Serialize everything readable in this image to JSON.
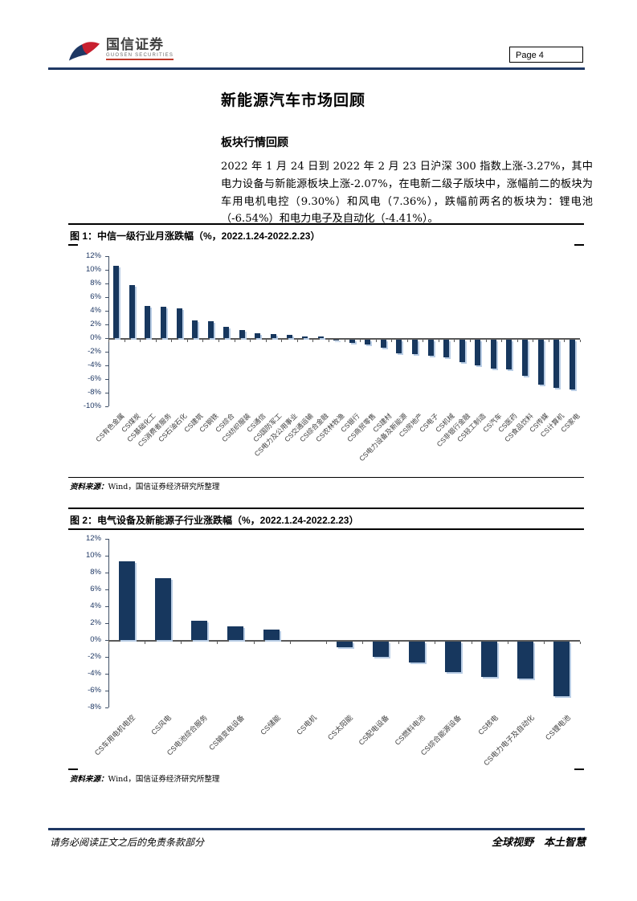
{
  "header": {
    "logo": {
      "name_cn": "国信证券",
      "name_en": "GUOSEN SECURITIES"
    },
    "page_label": "Page 4"
  },
  "article": {
    "title": "新能源汽车市场回顾",
    "section_heading": "板块行情回顾",
    "paragraph": "2022 年 1 月 24 日到 2022 年 2 月 23 日沪深 300 指数上涨-3.27%，其中电力设备与新能源板块上涨-2.07%，在电新二级子版块中，涨幅前二的板块为车用电机电控（9.30%）和风电（7.36%），跌幅前两名的板块为：锂电池（-6.54%）和电力电子及自动化（-4.41%）。"
  },
  "figures": [
    {
      "caption": "图 1：中信一级行业月涨跌幅（%，2022.1.24-2022.2.23）",
      "source_label": "资料来源：",
      "source_text": "Wind，国信证券经济研究所整理"
    },
    {
      "caption": "图 2：电气设备及新能源子行业涨跌幅（%，2022.1.24-2022.2.23）",
      "source_label": "资料来源：",
      "source_text": "Wind，国信证券经济研究所整理"
    }
  ],
  "footer": {
    "disclaimer": "请务必阅读正文之后的免责条款部分",
    "slogan": "全球视野　本土智慧"
  },
  "colors": {
    "bar": "#17375E",
    "bar_shadow": "#B9CDE5",
    "rule_navy": "#1F3864",
    "axis_text": "#1F3864",
    "axis_line": "#595959",
    "logo_red": "#C8202F",
    "logo_blue": "#1F3864"
  },
  "chart_data": [
    {
      "type": "bar",
      "title": "中信一级行业月涨跌幅（%，2022.1.24-2022.2.23）",
      "xlabel": "",
      "ylabel": "",
      "ylim": [
        -10,
        12
      ],
      "ytick_step": 2,
      "grid": false,
      "legend": null,
      "categories": [
        "CS有色金属",
        "CS煤炭",
        "CS基础化工",
        "CS消费者服务",
        "CS石油石化",
        "CS建筑",
        "CS钢铁",
        "CS综合",
        "CS纺织服装",
        "CS通信",
        "CS国防军工",
        "CS电力及公用事业",
        "CS交通运输",
        "CS综合金融",
        "CS农林牧渔",
        "CS银行",
        "CS商贸零售",
        "CS建材",
        "CS电力设备及新能源",
        "CS房地产",
        "CS电子",
        "CS机械",
        "CS非银行金融",
        "CS轻工制造",
        "CS汽车",
        "CS医药",
        "CS食品饮料",
        "CS传媒",
        "CS计算机",
        "CS家电"
      ],
      "values": [
        10.6,
        7.8,
        4.7,
        4.6,
        4.4,
        2.6,
        2.5,
        1.6,
        1.2,
        0.7,
        0.6,
        0.5,
        0.25,
        0.2,
        -0.2,
        -0.55,
        -0.75,
        -1.25,
        -2.07,
        -2.2,
        -2.4,
        -2.7,
        -3.3,
        -3.8,
        -4.3,
        -4.4,
        -5.3,
        -6.7,
        -7.1,
        -7.3
      ]
    },
    {
      "type": "bar",
      "title": "电气设备及新能源子行业涨跌幅（%，2022.1.24-2022.2.23）",
      "xlabel": "",
      "ylabel": "",
      "ylim": [
        -8,
        12
      ],
      "ytick_step": 2,
      "grid": false,
      "legend": null,
      "categories": [
        "CS车用电机电控",
        "CS风电",
        "CS电池综合服务",
        "CS输变电设备",
        "CS储能",
        "CS电机",
        "CS太阳能",
        "CS配电设备",
        "CS燃料电池",
        "CS综合能源设备",
        "CS核电",
        "CS电力电子及自动化",
        "CS锂电池"
      ],
      "values": [
        9.3,
        7.36,
        2.3,
        1.65,
        1.25,
        0.0,
        -0.7,
        -1.9,
        -2.5,
        -3.7,
        -4.2,
        -4.41,
        -6.54
      ]
    }
  ]
}
